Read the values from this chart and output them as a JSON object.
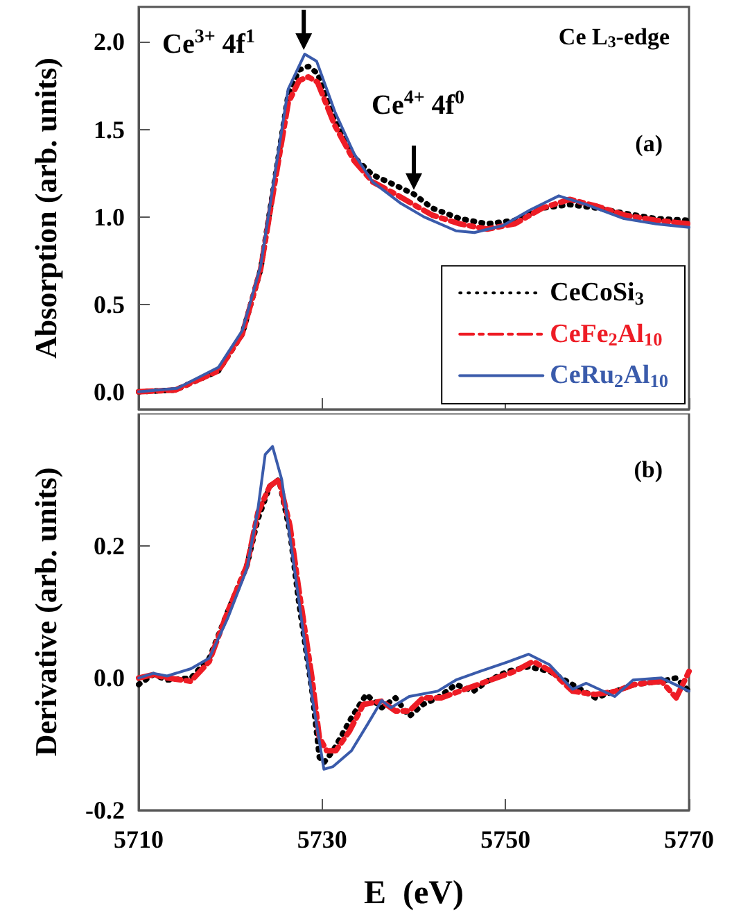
{
  "chart_data": [
    {
      "type": "line",
      "ylabel": "Absorption (arb. units)",
      "xlim": [
        5710,
        5770
      ],
      "xticks": [
        5710,
        5730,
        5750,
        5770
      ],
      "ylim": [
        -0.1,
        2.2
      ],
      "yticks": [
        {
          "value": 0,
          "label": "0.0"
        },
        {
          "value": 0.5,
          "label": "0.5"
        },
        {
          "value": 1,
          "label": "1.0"
        },
        {
          "value": 1.5,
          "label": "1.5"
        },
        {
          "value": 2,
          "label": "2.0"
        }
      ],
      "tick_labels": "y",
      "grid": false,
      "legend": "bottom right",
      "marker": "none",
      "annotations": [
        {
          "text": "Ce$^{3+}$ 4f$^{1}$",
          "x": 5728,
          "y": 1.93
        },
        {
          "text": "Ce$^{4+}$ 4f$^{0}$",
          "x": 5740,
          "y": 1.13
        },
        "Ce L$_{3}$-edge",
        "(a)"
      ],
      "series": [
        {
          "name": "CeCoSi$_{3}$",
          "color": "#000000",
          "line_style": "dotted",
          "x": [
            5710,
            5714,
            5718.7,
            5721.3,
            5723.3,
            5724.8,
            5726.3,
            5727.5,
            5728.5,
            5729.5,
            5731.4,
            5733.5,
            5735.5,
            5738,
            5740,
            5742,
            5745,
            5748,
            5751,
            5754,
            5757,
            5760,
            5763,
            5766.4,
            5770
          ],
          "values": [
            0.0,
            0.01,
            0.12,
            0.33,
            0.7,
            1.2,
            1.7,
            1.84,
            1.86,
            1.82,
            1.55,
            1.34,
            1.24,
            1.18,
            1.13,
            1.05,
            0.99,
            0.96,
            0.98,
            1.05,
            1.07,
            1.05,
            1.02,
            0.99,
            0.98
          ]
        },
        {
          "name": "CeFe$_{2}$Al$_{10}$",
          "color": "#ee1c25",
          "line_style": "dashed",
          "x": [
            5710,
            5714,
            5718.7,
            5721.3,
            5723.3,
            5724.8,
            5726.3,
            5727.5,
            5728.5,
            5729.5,
            5731.4,
            5733.5,
            5735.5,
            5738,
            5740,
            5742,
            5745,
            5748,
            5751,
            5754,
            5757,
            5760,
            5763,
            5766.4,
            5770
          ],
          "values": [
            0.0,
            0.01,
            0.12,
            0.33,
            0.7,
            1.18,
            1.65,
            1.78,
            1.8,
            1.77,
            1.52,
            1.32,
            1.2,
            1.13,
            1.07,
            1.01,
            0.96,
            0.93,
            0.96,
            1.05,
            1.1,
            1.06,
            1.01,
            0.98,
            0.96
          ]
        },
        {
          "name": "CeRu$_{2}$Al$_{10}$",
          "color": "#3a5bab",
          "line_style": "solid",
          "x": [
            5710,
            5714.2,
            5718.7,
            5721.3,
            5723.3,
            5724.8,
            5726.3,
            5728.1,
            5729.4,
            5731.4,
            5733.5,
            5735.5,
            5738.5,
            5741.1,
            5744.6,
            5746.6,
            5749.7,
            5752.7,
            5755.8,
            5758.8,
            5762.9,
            5766.4,
            5770
          ],
          "values": [
            0.0,
            0.02,
            0.14,
            0.35,
            0.72,
            1.23,
            1.73,
            1.93,
            1.89,
            1.6,
            1.36,
            1.2,
            1.08,
            1.0,
            0.92,
            0.91,
            0.95,
            1.04,
            1.12,
            1.07,
            0.99,
            0.96,
            0.94
          ]
        }
      ]
    },
    {
      "type": "line",
      "ylabel": "Derivative (arb. units)",
      "xlabel": "E  (eV)",
      "xlim": [
        5710,
        5770
      ],
      "xticks": [
        5710,
        5730,
        5750,
        5770
      ],
      "ylim": [
        -0.2,
        0.4
      ],
      "yticks": [
        {
          "value": -0.2,
          "label": "-0.2"
        },
        {
          "value": 0,
          "label": "0.0"
        },
        {
          "value": 0.2,
          "label": "0.2"
        }
      ],
      "grid": false,
      "marker": "none",
      "annotations": [
        "(b)"
      ],
      "series": [
        {
          "color": "#000000",
          "line_style": "dotted",
          "x": [
            5710,
            5711.6,
            5713.1,
            5715.7,
            5717.7,
            5719.7,
            5721.8,
            5723.0,
            5724.3,
            5725.3,
            5726.5,
            5727.4,
            5728.9,
            5729.7,
            5730.2,
            5731.2,
            5733.2,
            5734.8,
            5736.5,
            5738.0,
            5739.5,
            5741.0,
            5742.6,
            5744.6,
            5746.5,
            5748.0,
            5750.2,
            5752.5,
            5754.8,
            5757.3,
            5759.8,
            5762,
            5764,
            5767,
            5768.6,
            5770
          ],
          "values": [
            -0.01,
            0.005,
            -0.003,
            0.0,
            0.03,
            0.1,
            0.17,
            0.24,
            0.29,
            0.3,
            0.22,
            0.12,
            -0.02,
            -0.12,
            -0.128,
            -0.11,
            -0.06,
            -0.025,
            -0.045,
            -0.03,
            -0.058,
            -0.04,
            -0.03,
            -0.01,
            -0.02,
            -0.005,
            0.01,
            0.017,
            0.01,
            -0.01,
            -0.03,
            -0.02,
            -0.01,
            -0.005,
            0.0,
            -0.02
          ]
        },
        {
          "color": "#ee1c25",
          "line_style": "dashed",
          "x": [
            5710,
            5711.6,
            5713.1,
            5715.7,
            5717.7,
            5719.7,
            5721.8,
            5723.0,
            5724.3,
            5725.3,
            5726.5,
            5727.4,
            5728.9,
            5729.7,
            5730.5,
            5731.5,
            5733,
            5734.5,
            5736.5,
            5738.0,
            5739.5,
            5741,
            5743,
            5745,
            5747,
            5749,
            5751,
            5753,
            5755,
            5757.3,
            5759.8,
            5762,
            5764,
            5767,
            5768.6,
            5770
          ],
          "values": [
            0.0,
            0.005,
            0.0,
            -0.005,
            0.025,
            0.1,
            0.17,
            0.25,
            0.29,
            0.3,
            0.23,
            0.14,
            0.0,
            -0.09,
            -0.11,
            -0.11,
            -0.08,
            -0.04,
            -0.035,
            -0.05,
            -0.05,
            -0.03,
            -0.03,
            -0.02,
            -0.01,
            0.0,
            0.01,
            0.025,
            0.01,
            -0.02,
            -0.025,
            -0.02,
            -0.01,
            -0.005,
            -0.03,
            0.01
          ]
        },
        {
          "color": "#3a5bab",
          "line_style": "solid",
          "x": [
            5710,
            5711.6,
            5713.1,
            5715.7,
            5717.7,
            5719.7,
            5721.8,
            5723.0,
            5723.8,
            5724.6,
            5725.6,
            5727.4,
            5728.9,
            5730.2,
            5731.2,
            5733.2,
            5735.0,
            5736.5,
            5737.5,
            5739.5,
            5742.6,
            5744.6,
            5747.2,
            5750.2,
            5752.5,
            5754.8,
            5757.3,
            5758.8,
            5761.9,
            5763.9,
            5767.0,
            5770
          ],
          "values": [
            0.0,
            0.007,
            0.003,
            0.014,
            0.03,
            0.09,
            0.165,
            0.255,
            0.338,
            0.35,
            0.3,
            0.124,
            -0.028,
            -0.138,
            -0.134,
            -0.11,
            -0.069,
            -0.034,
            -0.045,
            -0.028,
            -0.02,
            -0.003,
            0.01,
            0.024,
            0.036,
            0.02,
            -0.017,
            -0.008,
            -0.028,
            -0.003,
            0.0,
            -0.02
          ]
        }
      ]
    }
  ]
}
